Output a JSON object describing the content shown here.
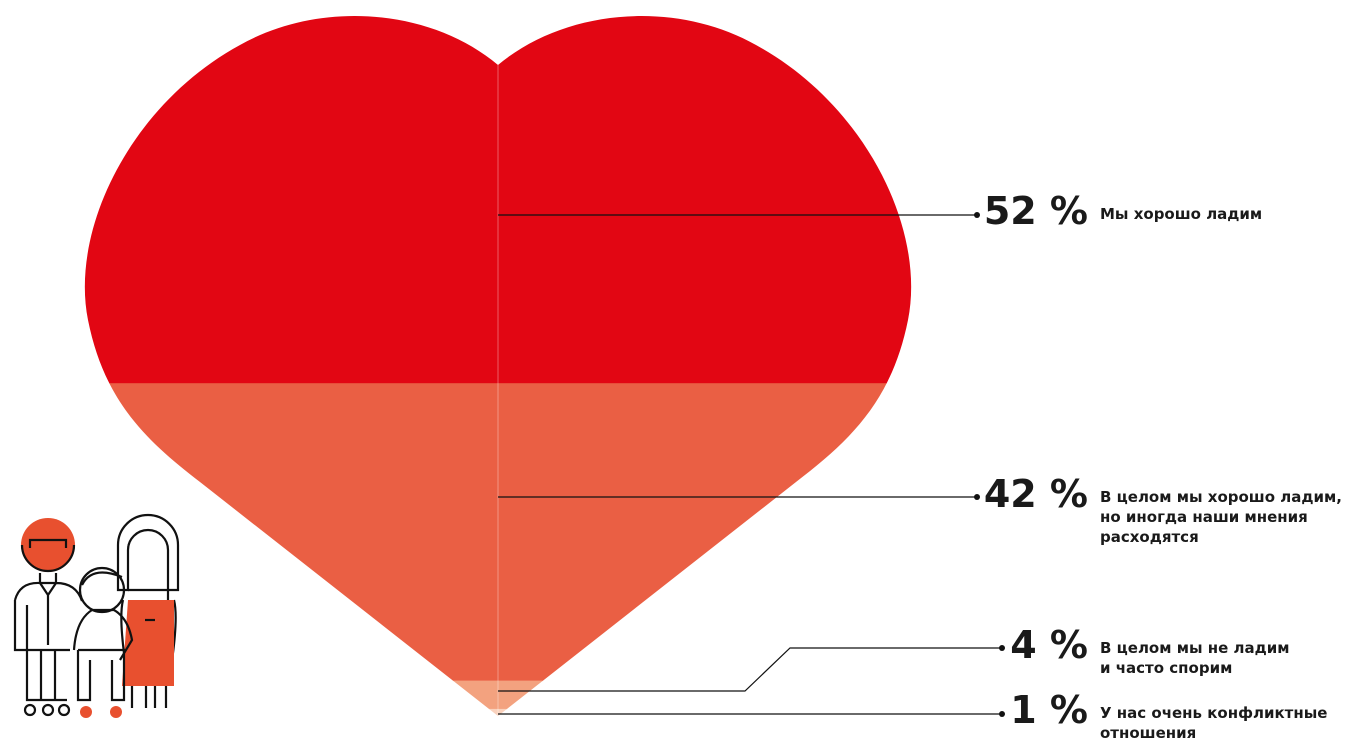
{
  "chart_data": {
    "type": "heart",
    "categories": [
      [
        "Мы хорошо ладим"
      ],
      [
        "В целом мы хорошо ладим,",
        "но иногда наши мнения",
        "расходятся"
      ],
      [
        "В целом мы не ладим",
        "и часто спорим"
      ],
      [
        "У нас очень конфликтные",
        "отношения"
      ]
    ],
    "values": [
      52,
      42,
      4,
      1
    ],
    "value_labels": [
      "52 %",
      "42 %",
      "4 %",
      "1 %"
    ],
    "colors": [
      "#e20613",
      "#ea5f44",
      "#f3a27f",
      "#fad2bd"
    ]
  }
}
